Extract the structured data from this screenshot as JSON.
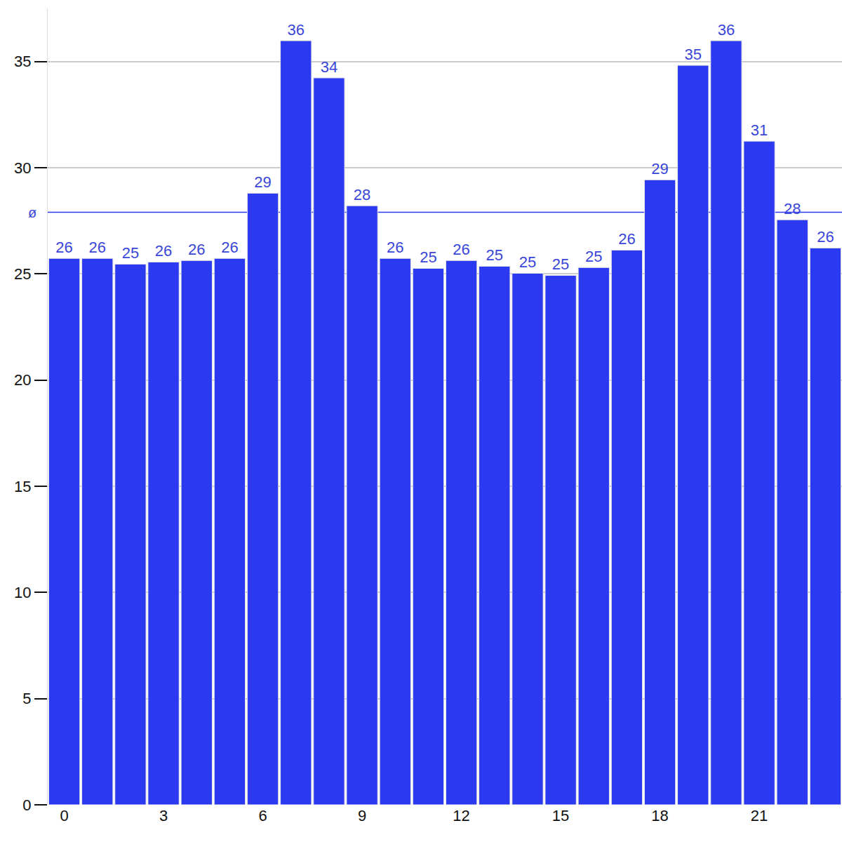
{
  "chart_data": {
    "type": "bar",
    "categories": [
      "0",
      null,
      null,
      "3",
      null,
      null,
      "6",
      null,
      null,
      "9",
      null,
      null,
      "12",
      null,
      null,
      "15",
      null,
      null,
      "18",
      null,
      null,
      "21",
      null,
      null
    ],
    "values": [
      25.73,
      25.73,
      25.46,
      25.56,
      25.63,
      25.73,
      28.8,
      35.98,
      34.23,
      28.21,
      25.73,
      25.26,
      25.63,
      25.36,
      25.03,
      24.93,
      25.3,
      26.12,
      29.43,
      34.82,
      35.98,
      31.25,
      27.55,
      26.22
    ],
    "value_labels": [
      "26",
      "26",
      "25",
      "26",
      "26",
      "26",
      "29",
      "36",
      "34",
      "28",
      "26",
      "25",
      "26",
      "25",
      "25",
      "25",
      "25",
      "26",
      "29",
      "35",
      "36",
      "31",
      "28",
      "26"
    ],
    "color": "#2b39f0",
    "ylim": [
      0,
      37.5
    ],
    "yticks": [
      0,
      5,
      10,
      15,
      20,
      25,
      30,
      35
    ],
    "grid": true,
    "data_labels": true,
    "reference_line": {
      "value": 27.9,
      "label": "ø"
    }
  }
}
